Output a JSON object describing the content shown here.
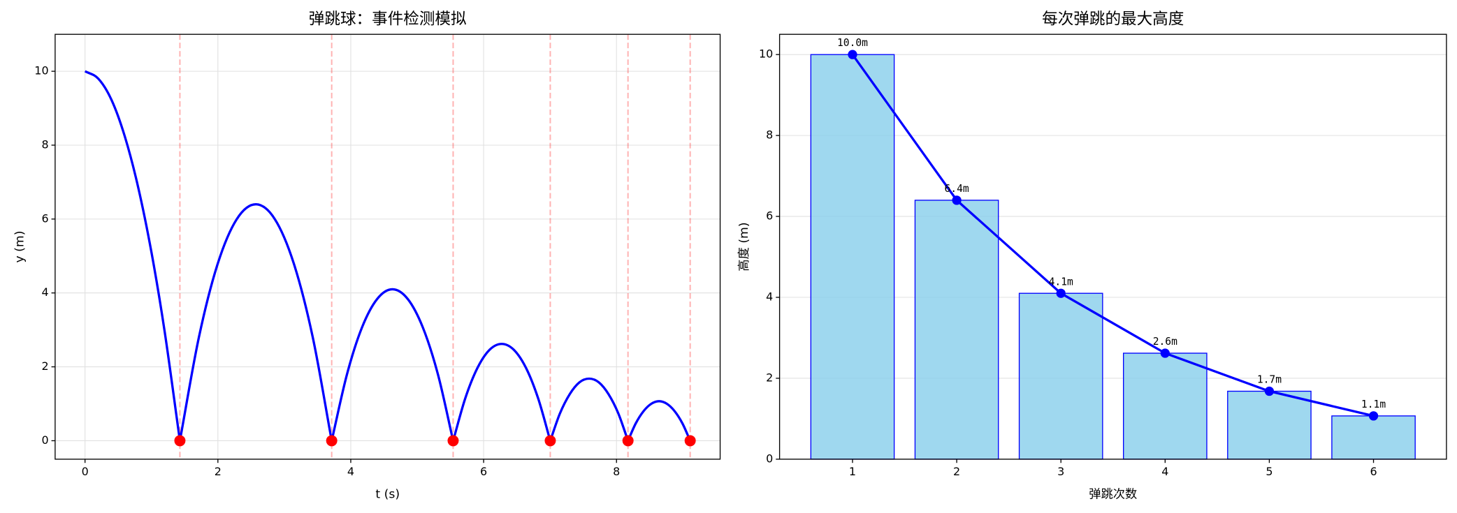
{
  "chart_data": [
    {
      "type": "line",
      "title": "弹跳球：事件检测模拟",
      "xlabel": "t (s)",
      "ylabel": "y (m)",
      "xlim": [
        -0.45,
        9.56
      ],
      "ylim": [
        -0.5,
        11
      ],
      "xticks": [
        0,
        2,
        4,
        6,
        8
      ],
      "yticks": [
        0,
        2,
        4,
        6,
        8,
        10
      ],
      "grid": true,
      "series": [
        {
          "color": "#0000ff",
          "x": [
            0,
            0.2,
            0.4,
            0.6,
            0.8,
            1.0,
            1.2,
            1.428,
            1.714,
            1.999,
            2.285,
            2.571,
            2.856,
            3.142,
            3.428,
            3.713,
            3.942,
            4.17,
            4.399,
            4.627,
            4.856,
            5.084,
            5.313,
            5.541,
            5.724,
            5.907,
            6.089,
            6.272,
            6.455,
            6.638,
            6.82,
            7.003,
            7.149,
            7.296,
            7.442,
            7.588,
            7.734,
            7.88,
            8.027,
            8.173,
            8.29,
            8.407,
            8.524,
            8.641,
            8.758,
            8.875,
            8.992,
            9.109
          ],
          "values": [
            10,
            9.8,
            9.22,
            8.23,
            6.86,
            5.1,
            2.94,
            0,
            2.8,
            4.8,
            6.0,
            6.4,
            6.0,
            4.8,
            2.8,
            0,
            1.79,
            3.07,
            3.84,
            4.1,
            3.84,
            3.07,
            1.79,
            0,
            1.15,
            1.97,
            2.46,
            2.62,
            2.46,
            1.97,
            1.15,
            0,
            0.74,
            1.26,
            1.58,
            1.68,
            1.58,
            1.26,
            0.74,
            0,
            0.47,
            0.8,
            1.0,
            1.07,
            1.0,
            0.8,
            0.47,
            0
          ]
        },
        {
          "color": "#ff0000",
          "style": "events",
          "vlines": true,
          "x": [
            1.428,
            3.713,
            5.541,
            7.003,
            8.173,
            9.109
          ],
          "values": [
            0,
            0,
            0,
            0,
            0,
            0
          ]
        }
      ]
    },
    {
      "type": "bar",
      "title": "每次弹跳的最大高度",
      "xlabel": "弹跳次数",
      "ylabel": "高度 (m)",
      "x": [
        1,
        2,
        3,
        4,
        5,
        6
      ],
      "values": [
        10.0,
        6.4,
        4.1,
        2.62,
        1.68,
        1.07
      ],
      "value_labels": [
        "10.0m",
        "6.4m",
        "4.1m",
        "2.6m",
        "1.7m",
        "1.1m"
      ],
      "color": "#87ceeb",
      "edgecolor": "#0000ff",
      "line_color": "#0000ff",
      "line_overlay": true,
      "xlim": [
        0.3,
        6.7
      ],
      "ylim": [
        0,
        10.5
      ],
      "xticks": [
        1,
        2,
        3,
        4,
        5,
        6
      ],
      "yticks": [
        0,
        2,
        4,
        6,
        8,
        10
      ],
      "grid": "y"
    }
  ]
}
